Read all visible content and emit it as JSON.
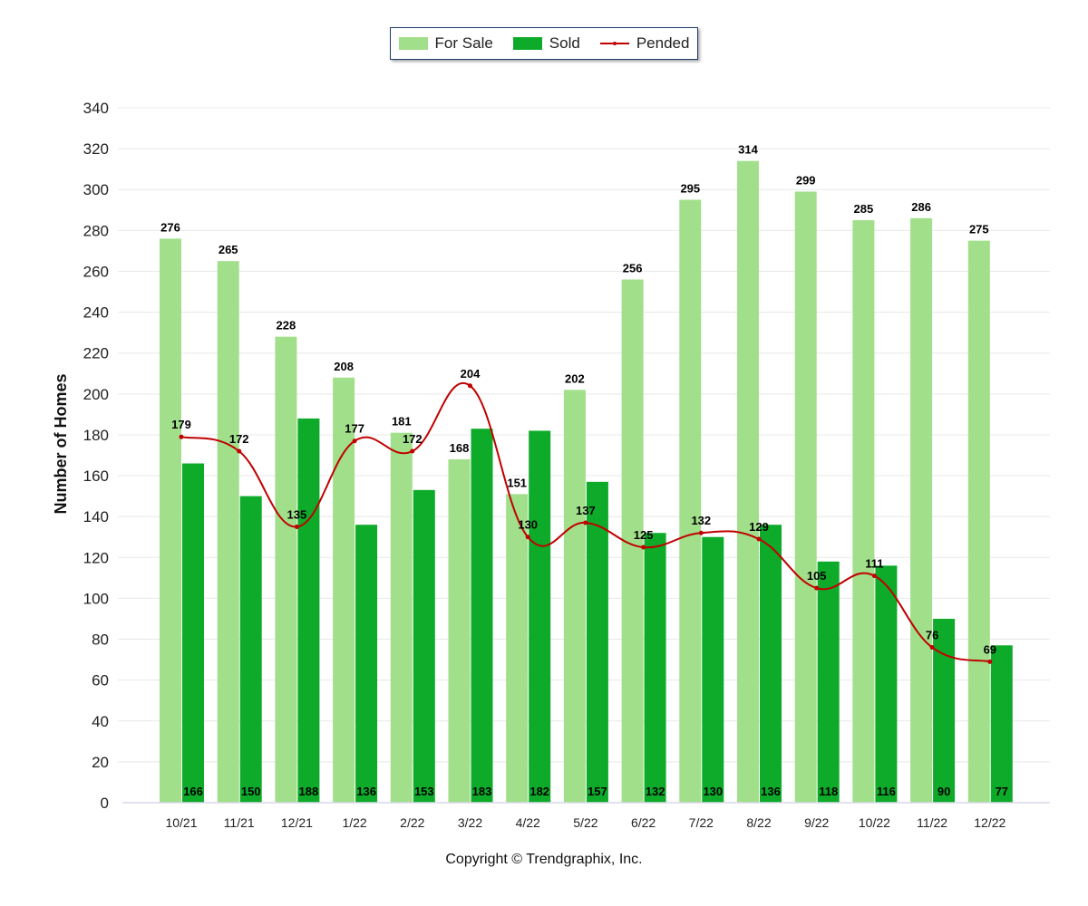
{
  "legend": {
    "for_sale": "For Sale",
    "sold": "Sold",
    "pended": "Pended"
  },
  "copyright": "Copyright © Trendgraphix, Inc.",
  "colors": {
    "for_sale": "#a1df8a",
    "sold": "#0eab2a",
    "pended": "#c00000",
    "grid": "#e8e8e8"
  },
  "chart_data": {
    "type": "bar",
    "categories": [
      "10/21",
      "11/21",
      "12/21",
      "1/22",
      "2/22",
      "3/22",
      "4/22",
      "5/22",
      "6/22",
      "7/22",
      "8/22",
      "9/22",
      "10/22",
      "11/22",
      "12/22"
    ],
    "series": [
      {
        "name": "For Sale",
        "type": "bar",
        "values": [
          276,
          265,
          228,
          208,
          181,
          168,
          151,
          202,
          256,
          295,
          314,
          299,
          285,
          286,
          275
        ]
      },
      {
        "name": "Sold",
        "type": "bar",
        "values": [
          166,
          150,
          188,
          136,
          153,
          183,
          182,
          157,
          132,
          130,
          136,
          118,
          116,
          90,
          77
        ]
      },
      {
        "name": "Pended",
        "type": "line",
        "values": [
          179,
          172,
          135,
          177,
          172,
          204,
          130,
          137,
          125,
          132,
          129,
          105,
          111,
          76,
          69
        ]
      }
    ],
    "ylabel": "Number of Homes",
    "xlabel": "",
    "ylim": [
      0,
      340
    ],
    "yticks": [
      0,
      20,
      40,
      60,
      80,
      100,
      120,
      140,
      160,
      180,
      200,
      220,
      240,
      260,
      280,
      300,
      320,
      340
    ],
    "grid": true,
    "legend_position": "top-center"
  }
}
